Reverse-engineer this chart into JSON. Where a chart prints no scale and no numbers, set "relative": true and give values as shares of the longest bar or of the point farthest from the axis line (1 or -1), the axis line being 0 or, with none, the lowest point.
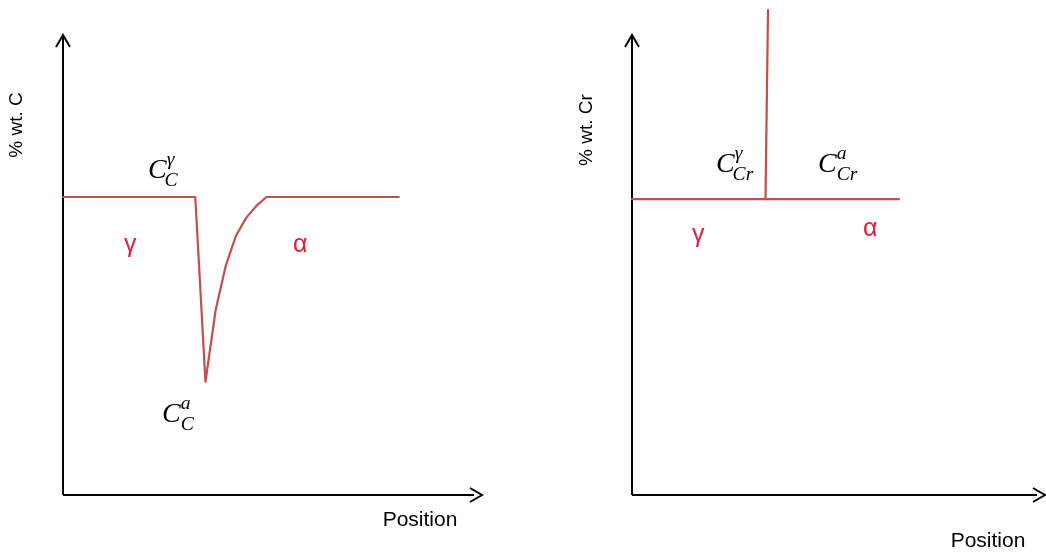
{
  "chart_data": [
    {
      "type": "line",
      "relative": true,
      "xlabel": "Position",
      "ylabel": "% wt. C",
      "categories": [
        null,
        null,
        null,
        null,
        null,
        null,
        null,
        null,
        null,
        null,
        null,
        null,
        null,
        null,
        null,
        null,
        null,
        null,
        null,
        null,
        null,
        null,
        null,
        null,
        null,
        null,
        null,
        null,
        null,
        null,
        null,
        null,
        null,
        null,
        null,
        null,
        null,
        null,
        null,
        null,
        null
      ],
      "series": [
        {
          "color": "#c0504d",
          "values": [
            1,
            1,
            1,
            1,
            1,
            1,
            1,
            1,
            1,
            1,
            1,
            1,
            1,
            1,
            0.38,
            0.62,
            0.77,
            0.87,
            0.93,
            0.97,
            1,
            1,
            1,
            1,
            1,
            1,
            1,
            1,
            1,
            1,
            1,
            1,
            1,
            1,
            null,
            null,
            null,
            null,
            null,
            null,
            null
          ]
        }
      ],
      "annotations": [
        "C$^{γ}$$_{C}$",
        "γ",
        "α",
        "C$^{a}$$_{C}$"
      ]
    },
    {
      "type": "line",
      "relative": true,
      "xlabel": "Position",
      "ylabel": "% wt. Cr",
      "categories": [
        null,
        null,
        null,
        null,
        null,
        null,
        null,
        null,
        null,
        null,
        null,
        null,
        null,
        null,
        null,
        null,
        null,
        null,
        null,
        null,
        null,
        null,
        null,
        null,
        null,
        null,
        null,
        null,
        null,
        null,
        null,
        null,
        null,
        null,
        null,
        null,
        null,
        null,
        null,
        null,
        null,
        null,
        null,
        null,
        null,
        null,
        null,
        null,
        null,
        null,
        null,
        null,
        null,
        null,
        null,
        null,
        null,
        null,
        null,
        null,
        null,
        null,
        null,
        null,
        null,
        null,
        null,
        null,
        null,
        null,
        null,
        null,
        null,
        null,
        null,
        null,
        null,
        null,
        null,
        null,
        null,
        null,
        null,
        null,
        null,
        null,
        null,
        null,
        null,
        null,
        null,
        null,
        null,
        null,
        null,
        null,
        null,
        null,
        null,
        null,
        null,
        null,
        null,
        null,
        null,
        null,
        null,
        null,
        null,
        null,
        null,
        null,
        null,
        null,
        null,
        null,
        null,
        null,
        null,
        null,
        null,
        null,
        null,
        null,
        null,
        null,
        null,
        null,
        null,
        null,
        null,
        null,
        null,
        null,
        null,
        null,
        null,
        null,
        null,
        null,
        null,
        null,
        null,
        null,
        null,
        null,
        null,
        null,
        null,
        null,
        null,
        null,
        null,
        null,
        null,
        null,
        null,
        null,
        null,
        null,
        null
      ],
      "series": [
        {
          "color": "#c0504d",
          "values": [
            0.61,
            0.61,
            0.61,
            0.61,
            0.61,
            0.61,
            0.61,
            0.61,
            0.61,
            0.61,
            0.61,
            0.61,
            0.61,
            0.61,
            0.61,
            0.61,
            0.61,
            0.61,
            0.61,
            0.61,
            0.61,
            0.61,
            0.61,
            0.61,
            0.61,
            0.61,
            0.61,
            0.61,
            0.61,
            0.61,
            0.61,
            0.61,
            0.61,
            0.61,
            0.61,
            0.61,
            0.61,
            0.61,
            0.61,
            0.61,
            0.61,
            0.61,
            0.61,
            0.61,
            0.61,
            0.61,
            0.61,
            0.61,
            0.61,
            0.61,
            0.61,
            0.61,
            0.61,
            0.61,
            0.61,
            0.61,
            0.61,
            0.61,
            0.61,
            0.61,
            0.61,
            0.61,
            0.61,
            0.61,
            0.61,
            0.61,
            0.61,
            0.61,
            0.61,
            0.61,
            0.61,
            0.61,
            0.61,
            0.61,
            0.61,
            0.61,
            0.61,
            0.61,
            0.61,
            0.61,
            0.61,
            0.61,
            0.61,
            0.61,
            0.61,
            0.61,
            0.61,
            0.61,
            0.61,
            0.61,
            0.61,
            0.61,
            0.61,
            0.61,
            0.61,
            0.61,
            0.61,
            0.61,
            0.61,
            0.61,
            0.61,
            0.61,
            0.61,
            0.61,
            0.61,
            0.61,
            0.61,
            null,
            null,
            null,
            null,
            null,
            null,
            null,
            null,
            null,
            null,
            null,
            null,
            null,
            null,
            null,
            null,
            null,
            null,
            null,
            null,
            null,
            null,
            null,
            null,
            null,
            null,
            null,
            null,
            null,
            null,
            null,
            null,
            null,
            null,
            null,
            null,
            null,
            null,
            null,
            null,
            null,
            null,
            null,
            null,
            null,
            null,
            null,
            null,
            null,
            null,
            null,
            null,
            null,
            null
          ]
        },
        {
          "color": "#c0504d",
          "values": [
            null,
            null,
            null,
            null,
            null,
            null,
            null,
            null,
            null,
            null,
            null,
            null,
            null,
            null,
            null,
            null,
            null,
            null,
            null,
            null,
            null,
            null,
            null,
            null,
            null,
            null,
            null,
            null,
            null,
            null,
            null,
            null,
            null,
            null,
            null,
            null,
            null,
            null,
            null,
            null,
            null,
            null,
            null,
            null,
            null,
            null,
            null,
            null,
            null,
            null,
            null,
            null,
            null,
            0.61,
            1,
            null,
            null,
            null,
            null,
            null,
            null,
            null,
            null,
            null,
            null,
            null,
            null,
            null,
            null,
            null,
            null,
            null,
            null,
            null,
            null,
            null,
            null,
            null,
            null,
            null,
            null,
            null,
            null,
            null,
            null,
            null,
            null,
            null,
            null,
            null,
            null,
            null,
            null,
            null,
            null,
            null,
            null,
            null,
            null,
            null,
            null,
            null,
            null,
            null,
            null,
            null,
            null,
            null,
            null,
            null,
            null,
            null,
            null,
            null,
            null,
            null,
            null,
            null,
            null,
            null,
            null,
            null,
            null,
            null,
            null,
            null,
            null,
            null,
            null,
            null,
            null,
            null,
            null,
            null,
            null,
            null,
            null,
            null,
            null,
            null,
            null,
            null,
            null,
            null,
            null,
            null,
            null,
            null,
            null,
            null,
            null,
            null,
            null,
            null,
            null,
            null,
            null,
            null,
            null,
            null,
            null
          ]
        }
      ],
      "annotations": [
        "C$^{γ}$$_{Cr}$",
        "C$^{a}$$_{Cr}$",
        "γ",
        "α"
      ]
    }
  ]
}
